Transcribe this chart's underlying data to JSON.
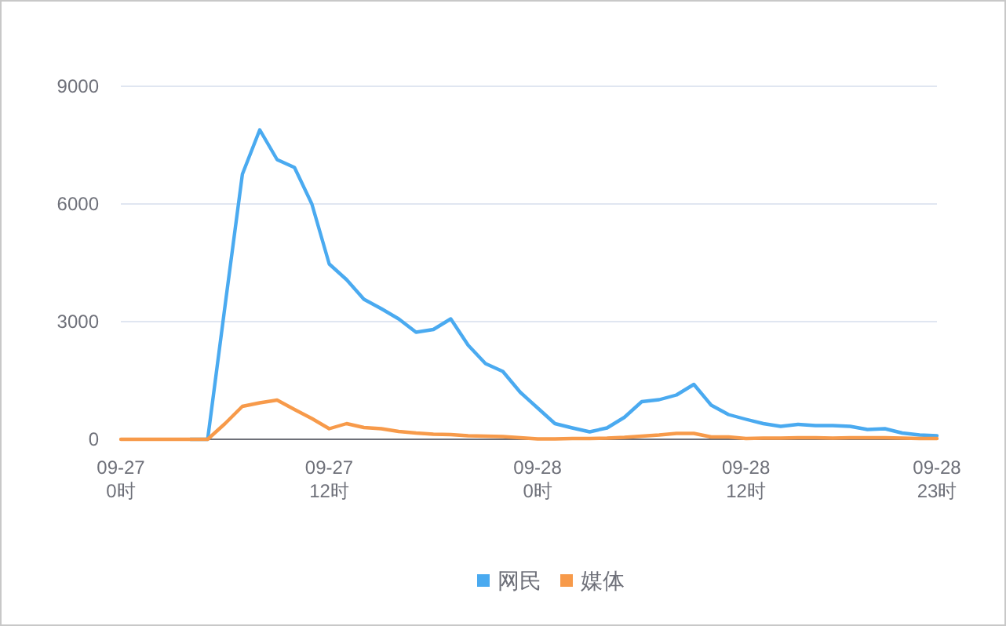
{
  "chart_data": {
    "type": "line",
    "categories": [
      "09-27\n0时",
      null,
      null,
      null,
      null,
      null,
      null,
      null,
      null,
      null,
      null,
      null,
      "09-27\n12时",
      null,
      null,
      null,
      null,
      null,
      null,
      null,
      null,
      null,
      null,
      null,
      "09-28\n0时",
      null,
      null,
      null,
      null,
      null,
      null,
      null,
      null,
      null,
      null,
      null,
      "09-28\n12时",
      null,
      null,
      null,
      null,
      null,
      null,
      null,
      null,
      null,
      null,
      "09-28\n23时"
    ],
    "series": [
      {
        "name": "网民",
        "color": "#4aaaf0",
        "values": [
          null,
          null,
          null,
          null,
          0,
          0,
          3400,
          6760,
          7890,
          7130,
          6930,
          6000,
          4470,
          4070,
          3570,
          3330,
          3070,
          2730,
          2800,
          3070,
          2400,
          1930,
          1730,
          1200,
          800,
          400,
          290,
          190,
          290,
          560,
          960,
          1010,
          1130,
          1400,
          870,
          630,
          510,
          400,
          330,
          380,
          350,
          350,
          330,
          250,
          270,
          160,
          110,
          90
        ]
      },
      {
        "name": "媒体",
        "color": "#f79a4a",
        "values": [
          0,
          0,
          0,
          0,
          0,
          0,
          400,
          840,
          930,
          1000,
          760,
          530,
          270,
          400,
          300,
          270,
          200,
          160,
          130,
          120,
          90,
          80,
          70,
          40,
          10,
          10,
          20,
          20,
          30,
          50,
          80,
          110,
          150,
          150,
          60,
          60,
          20,
          30,
          30,
          40,
          40,
          30,
          40,
          40,
          40,
          30,
          20,
          20
        ]
      }
    ],
    "ylim": [
      0,
      9000
    ],
    "yticks": [
      0,
      3000,
      6000,
      9000
    ],
    "grid": "y",
    "legend": "bottom",
    "marker": "none",
    "line_style": "solid"
  }
}
